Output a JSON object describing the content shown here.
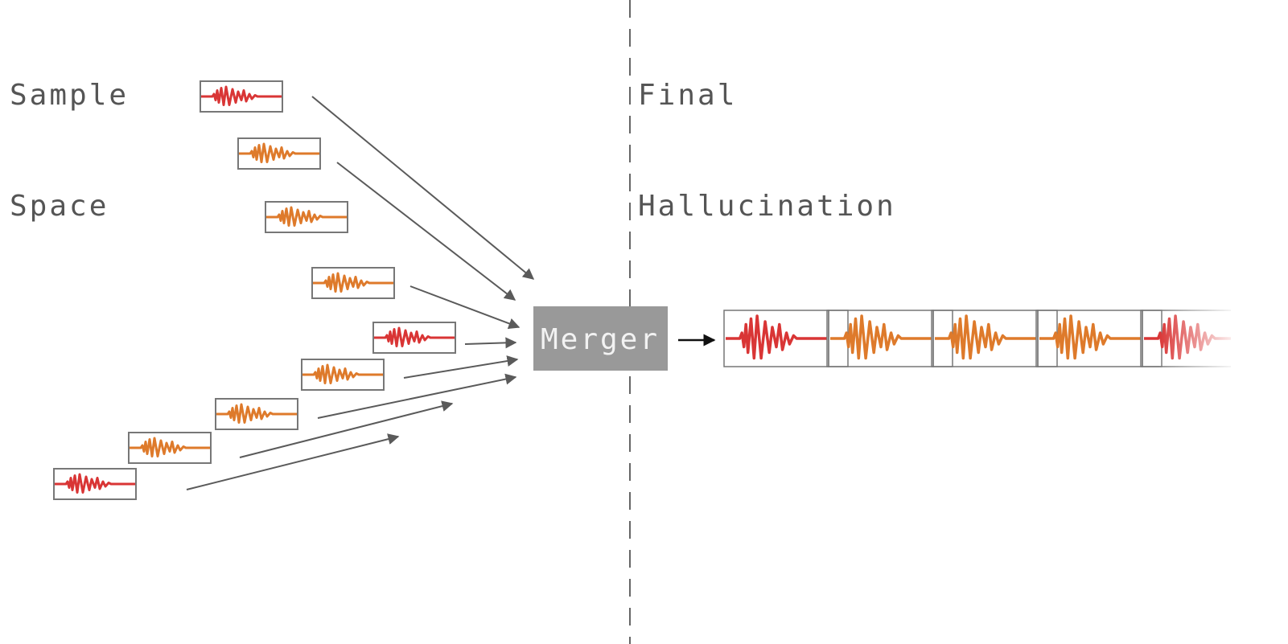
{
  "sample_space": {
    "line1": "Sample",
    "line2": "Space"
  },
  "final_hallucination": {
    "line1": "Final",
    "line2": "Hallucination"
  },
  "merger": {
    "label": "Merger"
  },
  "colors": {
    "red_sample": "#d93535",
    "orange_sample": "#de7a2b",
    "merger_fill": "#999999",
    "merger_text": "#f2f2f2",
    "arrow": "#5a5a5a",
    "divider": "#666666",
    "box_border": "#777777"
  },
  "samples": [
    "red",
    "orange",
    "orange",
    "orange",
    "red",
    "orange",
    "orange",
    "orange",
    "red"
  ],
  "hallucination_segments": [
    "red",
    "orange",
    "orange",
    "orange",
    "red"
  ]
}
